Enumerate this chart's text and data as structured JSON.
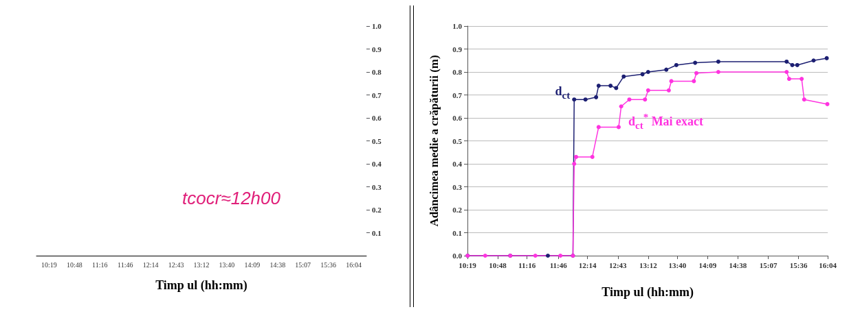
{
  "chart_data": [
    {
      "type": "line",
      "xlabel": "Timp ul (hh:mm)",
      "values": [
        null,
        null,
        null,
        null,
        null,
        null,
        null,
        null,
        null,
        null,
        null,
        null,
        null
      ],
      "categories": [
        "10:19",
        "10:48",
        "11:16",
        "11:46",
        "12:14",
        "12:43",
        "13:12",
        "13:40",
        "14:09",
        "14:38",
        "15:07",
        "15:36",
        "16:04"
      ],
      "ylim": [
        0,
        1
      ],
      "yticks": [
        {
          "value": 0.1,
          "label": "0.1"
        },
        {
          "value": 0.2,
          "label": "0.2"
        },
        {
          "value": 0.3,
          "label": "0.3"
        },
        {
          "value": 0.4,
          "label": "0.4"
        },
        {
          "value": 0.5,
          "label": "0.5"
        },
        {
          "value": 0.6,
          "label": "0.6"
        },
        {
          "value": 0.7,
          "label": "0.7"
        },
        {
          "value": 0.8,
          "label": "0.8"
        },
        {
          "value": 0.9,
          "label": "0.9"
        },
        {
          "value": 1,
          "label": "1.0"
        }
      ],
      "annotations": [
        "tcocr≈12h00"
      ]
    },
    {
      "type": "line",
      "xlabel": "Timp ul (hh:mm)",
      "ylabel": "Adâncimea medie a crăpăturii (m)",
      "xlim": [
        10.317,
        16.067
      ],
      "xticks": [
        {
          "value": 10.317,
          "label": "10:19"
        },
        {
          "value": 10.8,
          "label": "10:48"
        },
        {
          "value": 11.267,
          "label": "11:16"
        },
        {
          "value": 11.767,
          "label": "11:46"
        },
        {
          "value": 12.233,
          "label": "12:14"
        },
        {
          "value": 12.717,
          "label": "12:43"
        },
        {
          "value": 13.2,
          "label": "13:12"
        },
        {
          "value": 13.667,
          "label": "13:40"
        },
        {
          "value": 14.15,
          "label": "14:09"
        },
        {
          "value": 14.633,
          "label": "14:38"
        },
        {
          "value": 15.117,
          "label": "15:07"
        },
        {
          "value": 15.6,
          "label": "15:36"
        },
        {
          "value": 16.067,
          "label": "16:04"
        }
      ],
      "ylim": [
        0,
        1
      ],
      "yticks": [
        {
          "value": 0,
          "label": "0.0"
        },
        {
          "value": 0.1,
          "label": "0.1"
        },
        {
          "value": 0.2,
          "label": "0.2"
        },
        {
          "value": 0.3,
          "label": "0.3"
        },
        {
          "value": 0.4,
          "label": "0.4"
        },
        {
          "value": 0.5,
          "label": "0.5"
        },
        {
          "value": 0.6,
          "label": "0.6"
        },
        {
          "value": 0.7,
          "label": "0.7"
        },
        {
          "value": 0.8,
          "label": "0.8"
        },
        {
          "value": 0.9,
          "label": "0.9"
        },
        {
          "value": 1,
          "label": "1.0"
        }
      ],
      "grid": "y",
      "marker": "circle",
      "line_style": "solid",
      "legend": false,
      "series": [
        {
          "name": "d$_{ct}$",
          "color": "#1c1f72",
          "x": [
            10.32,
            11.0,
            11.6,
            12.0,
            12.02,
            12.2,
            12.37,
            12.41,
            12.6,
            12.69,
            12.81,
            13.11,
            13.2,
            13.49,
            13.65,
            13.95,
            14.32,
            15.41,
            15.5,
            15.58,
            15.84,
            16.05
          ],
          "values": [
            0,
            0,
            0,
            0,
            0.68,
            0.68,
            0.69,
            0.74,
            0.74,
            0.73,
            0.78,
            0.79,
            0.8,
            0.81,
            0.83,
            0.84,
            0.845,
            0.845,
            0.83,
            0.83,
            0.85,
            0.86
          ]
        },
        {
          "name": "d$_{ct}$$^{*}$ Mai exact",
          "color": "#ff33e0",
          "x": [
            10.32,
            10.6,
            11.0,
            11.4,
            11.8,
            12.0,
            12.02,
            12.05,
            12.31,
            12.41,
            12.73,
            12.77,
            12.9,
            13.15,
            13.2,
            13.53,
            13.57,
            13.93,
            13.97,
            14.32,
            15.41,
            15.45,
            15.65,
            15.69,
            16.06
          ],
          "values": [
            0,
            0,
            0,
            0,
            0,
            0,
            0.4,
            0.43,
            0.43,
            0.56,
            0.56,
            0.65,
            0.68,
            0.68,
            0.72,
            0.72,
            0.76,
            0.76,
            0.795,
            0.8,
            0.8,
            0.77,
            0.77,
            0.68,
            0.66
          ]
        }
      ]
    }
  ]
}
